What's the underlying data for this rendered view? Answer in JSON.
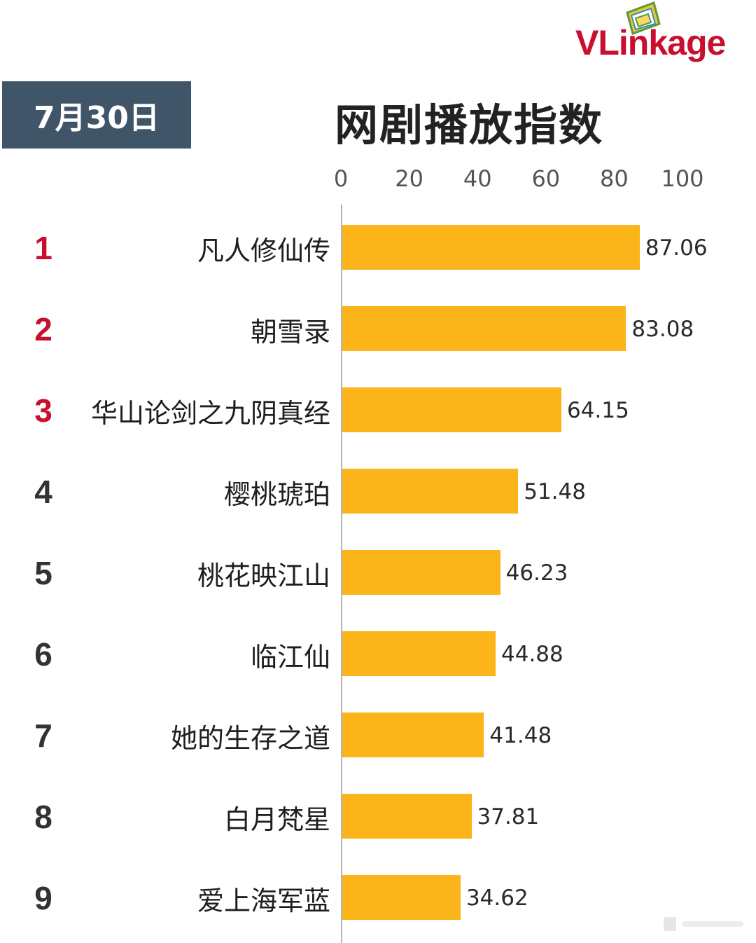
{
  "brand": {
    "name": "VLinkage"
  },
  "header": {
    "date": "7月30日",
    "title": "网剧播放指数"
  },
  "colors": {
    "bar": "#fbb419",
    "rank_top": "#c8102e",
    "date_box": "#415568"
  },
  "chart_data": {
    "type": "bar",
    "orientation": "horizontal",
    "title": "网剧播放指数",
    "xlim": [
      0,
      100
    ],
    "ticks": [
      "0",
      "20",
      "40",
      "60",
      "80",
      "100"
    ],
    "ranks": [
      "1",
      "2",
      "3",
      "4",
      "5",
      "6",
      "7",
      "8",
      "9"
    ],
    "categories": [
      "凡人修仙传",
      "朝雪录",
      "华山论剑之九阴真经",
      "樱桃琥珀",
      "桃花映江山",
      "临江仙",
      "她的生存之道",
      "白月梵星",
      "爱上海军蓝"
    ],
    "values": [
      87.06,
      83.08,
      64.15,
      51.48,
      46.23,
      44.88,
      41.48,
      37.81,
      34.62
    ],
    "value_labels": [
      "87.06",
      "83.08",
      "64.15",
      "51.48",
      "46.23",
      "44.88",
      "41.48",
      "37.81",
      "34.62"
    ],
    "grid": false
  }
}
